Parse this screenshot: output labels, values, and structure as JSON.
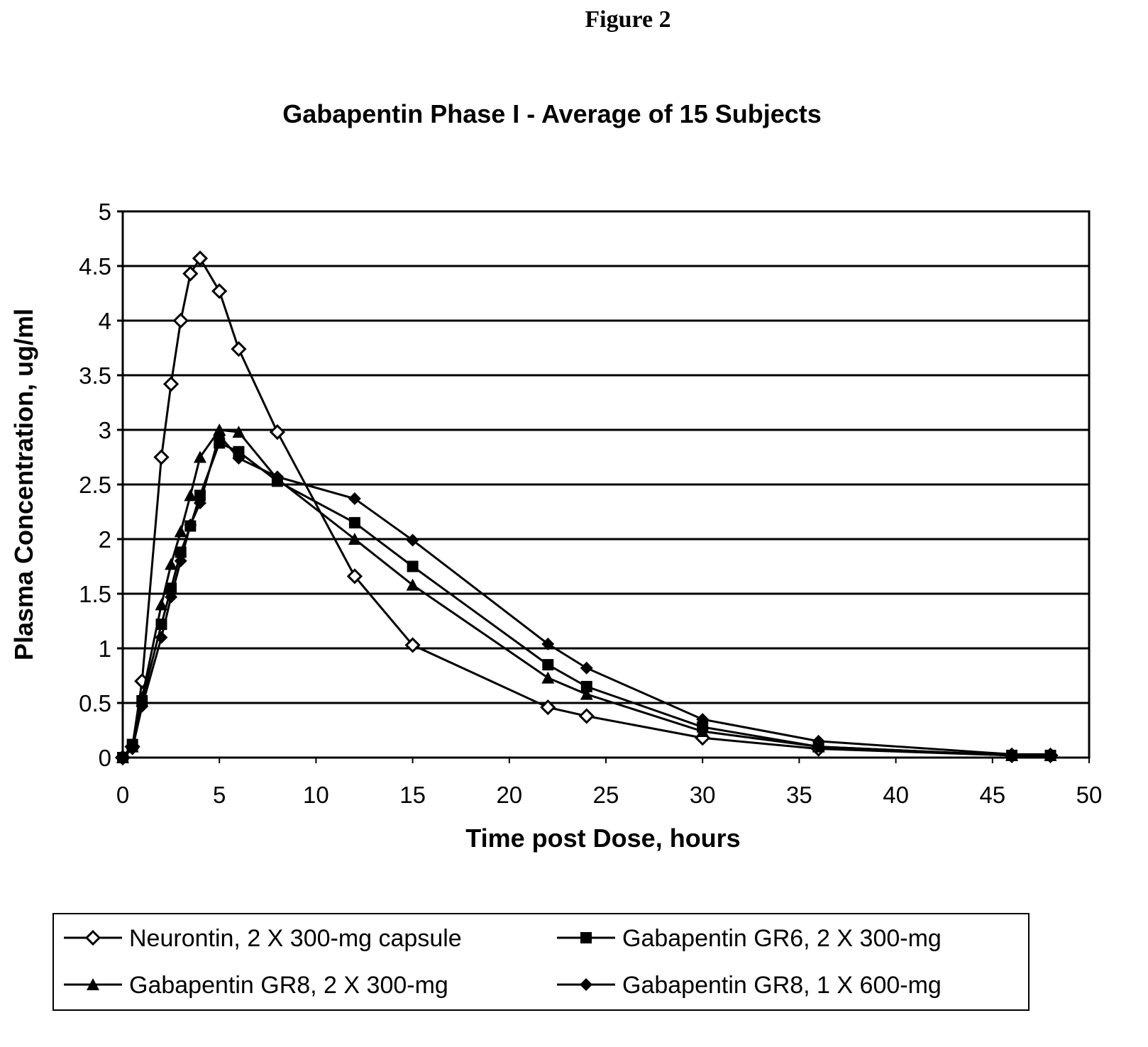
{
  "figure_label": "Figure 2",
  "chart_data": {
    "type": "line",
    "title": "Gabapentin Phase I  - Average of 15 Subjects",
    "xlabel": "Time post Dose, hours",
    "ylabel": "Plasma Concentration, ug/ml",
    "xlim": [
      0,
      50
    ],
    "ylim": [
      0,
      5
    ],
    "xticks": [
      "0",
      "5",
      "10",
      "15",
      "20",
      "25",
      "30",
      "35",
      "40",
      "45",
      "50"
    ],
    "yticks": [
      "0",
      "0.5",
      "1",
      "1.5",
      "2",
      "2.5",
      "3",
      "3.5",
      "4",
      "4.5",
      "5"
    ],
    "grid": "horizontal",
    "legend_position": "bottom",
    "x": [
      0,
      0.5,
      1,
      2,
      2.5,
      3,
      3.5,
      4,
      5,
      6,
      8,
      12,
      15,
      22,
      24,
      30,
      36,
      46,
      48
    ],
    "series": [
      {
        "name": "Neurontin, 2 X 300-mg capsule",
        "marker": "open-diamond",
        "values": [
          0,
          0.1,
          0.7,
          2.75,
          3.42,
          4.0,
          4.43,
          4.57,
          4.27,
          3.74,
          2.98,
          1.66,
          1.03,
          0.46,
          0.38,
          0.18,
          0.08,
          0.02,
          0.02
        ]
      },
      {
        "name": "Gabapentin GR6, 2 X 300-mg",
        "marker": "filled-square",
        "values": [
          0,
          0.12,
          0.52,
          1.22,
          1.55,
          1.88,
          2.12,
          2.4,
          2.88,
          2.8,
          2.53,
          2.15,
          1.75,
          0.85,
          0.65,
          0.28,
          0.1,
          0.02,
          0.02
        ]
      },
      {
        "name": "Gabapentin GR8, 2 X 300-mg",
        "marker": "filled-triangle",
        "values": [
          0,
          0.1,
          0.55,
          1.4,
          1.77,
          2.07,
          2.4,
          2.75,
          3.0,
          2.98,
          2.55,
          2.0,
          1.58,
          0.73,
          0.58,
          0.24,
          0.1,
          0.02,
          0.02
        ]
      },
      {
        "name": "Gabapentin GR8, 1 X 600-mg",
        "marker": "filled-diamond",
        "values": [
          0,
          0.08,
          0.47,
          1.1,
          1.47,
          1.8,
          2.13,
          2.33,
          2.95,
          2.74,
          2.57,
          2.37,
          1.99,
          1.04,
          0.82,
          0.35,
          0.15,
          0.03,
          0.03
        ]
      }
    ],
    "line_color": "#000000"
  }
}
